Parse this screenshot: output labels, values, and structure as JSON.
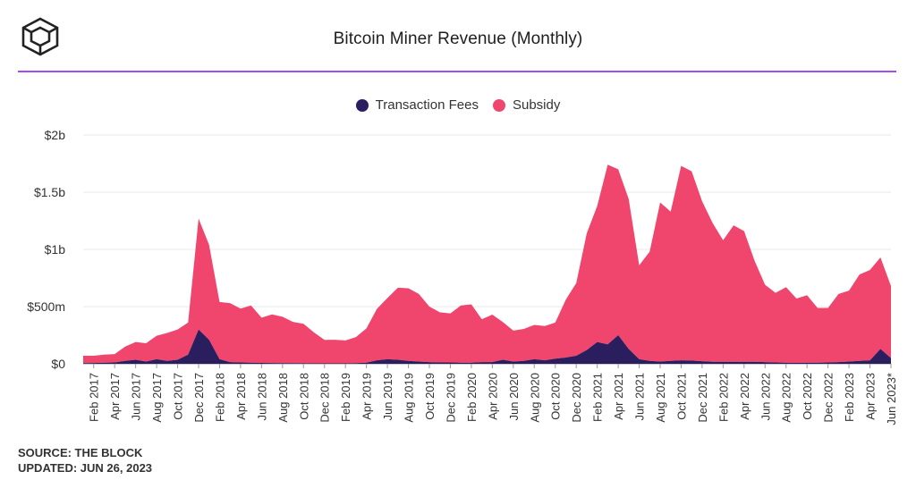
{
  "header": {
    "title": "Bitcoin Miner Revenue (Monthly)",
    "logo_icon": "cube-logo-icon"
  },
  "colors": {
    "fees": "#2b1e5e",
    "subsidy": "#f0466e",
    "accent_rule": "#a64bf4",
    "grid": "#e8e8e8"
  },
  "footer": {
    "source": "SOURCE: THE BLOCK",
    "updated": "UPDATED: JUN 26, 2023"
  },
  "chart_data": {
    "type": "area",
    "stacked": true,
    "title": "Bitcoin Miner Revenue (Monthly)",
    "legend_position": "top-center",
    "grid": true,
    "y_ticks": [
      "$0",
      "$500m",
      "$1b",
      "$1.5b",
      "$2b"
    ],
    "y_tick_values": [
      0,
      500,
      1000,
      1500,
      2000
    ],
    "ylim": [
      0,
      2000
    ],
    "y_unit": "millions USD",
    "x_tick_labels": [
      "Feb 2017",
      "Apr 2017",
      "Jun 2017",
      "Aug 2017",
      "Oct 2017",
      "Dec 2017",
      "Feb 2018",
      "Apr 2018",
      "Jun 2018",
      "Aug 2018",
      "Oct 2018",
      "Dec 2018",
      "Feb 2019",
      "Apr 2019",
      "Jun 2019",
      "Aug 2019",
      "Oct 2019",
      "Dec 2019",
      "Feb 2020",
      "Apr 2020",
      "Jun 2020",
      "Aug 2020",
      "Oct 2020",
      "Dec 2020",
      "Feb 2021",
      "Apr 2021",
      "Jun 2021",
      "Aug 2021",
      "Oct 2021",
      "Dec 2021",
      "Feb 2022",
      "Apr 2022",
      "Jun 2022",
      "Aug 2022",
      "Oct 2022",
      "Dec 2022",
      "Feb 2023",
      "Apr 2023",
      "Jun 2023*"
    ],
    "x": [
      "Jan 2017",
      "Feb 2017",
      "Mar 2017",
      "Apr 2017",
      "May 2017",
      "Jun 2017",
      "Jul 2017",
      "Aug 2017",
      "Sep 2017",
      "Oct 2017",
      "Nov 2017",
      "Dec 2017",
      "Jan 2018",
      "Feb 2018",
      "Mar 2018",
      "Apr 2018",
      "May 2018",
      "Jun 2018",
      "Jul 2018",
      "Aug 2018",
      "Sep 2018",
      "Oct 2018",
      "Nov 2018",
      "Dec 2018",
      "Jan 2019",
      "Feb 2019",
      "Mar 2019",
      "Apr 2019",
      "May 2019",
      "Jun 2019",
      "Jul 2019",
      "Aug 2019",
      "Sep 2019",
      "Oct 2019",
      "Nov 2019",
      "Dec 2019",
      "Jan 2020",
      "Feb 2020",
      "Mar 2020",
      "Apr 2020",
      "May 2020",
      "Jun 2020",
      "Jul 2020",
      "Aug 2020",
      "Sep 2020",
      "Oct 2020",
      "Nov 2020",
      "Dec 2020",
      "Jan 2021",
      "Feb 2021",
      "Mar 2021",
      "Apr 2021",
      "May 2021",
      "Jun 2021",
      "Jul 2021",
      "Aug 2021",
      "Sep 2021",
      "Oct 2021",
      "Nov 2021",
      "Dec 2021",
      "Jan 2022",
      "Feb 2022",
      "Mar 2022",
      "Apr 2022",
      "May 2022",
      "Jun 2022",
      "Jul 2022",
      "Aug 2022",
      "Sep 2022",
      "Oct 2022",
      "Nov 2022",
      "Dec 2022",
      "Jan 2023",
      "Feb 2023",
      "Mar 2023",
      "Apr 2023",
      "May 2023",
      "Jun 2023"
    ],
    "series": [
      {
        "name": "Transaction Fees",
        "values": [
          6,
          7,
          10,
          12,
          25,
          35,
          20,
          40,
          25,
          35,
          80,
          300,
          210,
          40,
          15,
          12,
          10,
          8,
          7,
          6,
          6,
          5,
          4,
          4,
          4,
          4,
          6,
          10,
          30,
          40,
          35,
          25,
          20,
          15,
          12,
          12,
          10,
          10,
          15,
          15,
          35,
          20,
          25,
          40,
          30,
          45,
          55,
          70,
          120,
          190,
          170,
          250,
          130,
          40,
          25,
          20,
          25,
          30,
          28,
          22,
          18,
          18,
          18,
          18,
          18,
          15,
          12,
          10,
          8,
          10,
          10,
          12,
          15,
          20,
          25,
          30,
          130,
          50
        ],
        "color": "#2b1e5e"
      },
      {
        "name": "Subsidy",
        "values": [
          64,
          63,
          70,
          73,
          125,
          155,
          160,
          205,
          245,
          265,
          280,
          970,
          830,
          500,
          515,
          470,
          500,
          395,
          425,
          405,
          360,
          345,
          270,
          205,
          206,
          200,
          227,
          300,
          450,
          535,
          630,
          635,
          590,
          485,
          438,
          428,
          500,
          510,
          375,
          415,
          330,
          270,
          280,
          300,
          300,
          315,
          505,
          635,
          1020,
          1190,
          1570,
          1450,
          1310,
          820,
          955,
          1390,
          1305,
          1700,
          1655,
          1398,
          1212,
          1062,
          1192,
          1142,
          882,
          675,
          608,
          660,
          562,
          590,
          478,
          476,
          595,
          620,
          755,
          790,
          800,
          630
        ]
      }
    ]
  }
}
